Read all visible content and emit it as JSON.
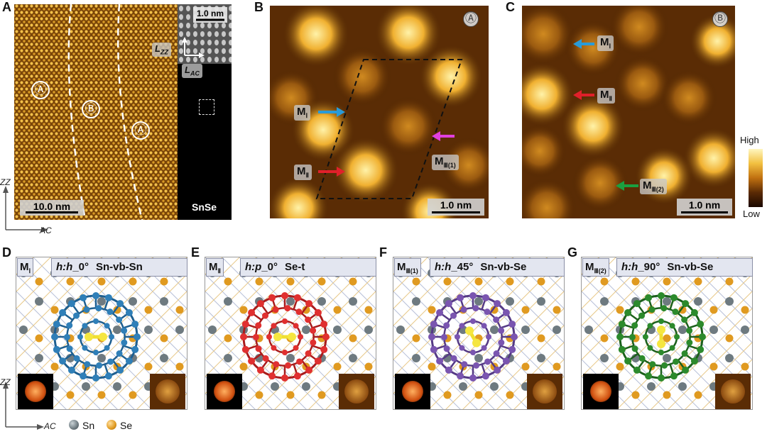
{
  "panel_labels": [
    "A",
    "B",
    "C",
    "D",
    "E",
    "F",
    "G"
  ],
  "panelA": {
    "scale_bar": "10.0 nm",
    "inset_scale_bar": "1.0 nm",
    "material": "SnSe",
    "lzz": "L",
    "lzz_sub": "ZZ",
    "lac": "L",
    "lac_sub": "AC",
    "domains": [
      "Ⓐ",
      "Ⓑ",
      "Ⓐ"
    ],
    "axis_zz": "ZZ",
    "axis_ac": "AC"
  },
  "panelB": {
    "badge": "Ⓐ",
    "scale_bar": "1.0 nm",
    "tags": [
      {
        "main": "M",
        "sub": "Ⅰ"
      },
      {
        "main": "M",
        "sub": "Ⅱ"
      },
      {
        "main": "M",
        "sub": "Ⅲ(1)"
      }
    ],
    "arrow_colors": [
      "#2a9bd8",
      "#e0202a",
      "#e040e0"
    ]
  },
  "panelC": {
    "badge": "Ⓑ",
    "scale_bar": "1.0 nm",
    "tags": [
      {
        "main": "M",
        "sub": "Ⅰ"
      },
      {
        "main": "M",
        "sub": "Ⅱ"
      },
      {
        "main": "M",
        "sub": "Ⅲ(2)"
      }
    ],
    "arrow_colors": [
      "#2a9bd8",
      "#e0202a",
      "#1aa040"
    ],
    "colorbar_high": "High",
    "colorbar_low": "Low"
  },
  "models": [
    {
      "letter": "D",
      "m_main": "M",
      "m_sub": "Ⅰ",
      "orient": "h:h",
      "angle": "_0°",
      "site": "Sn-vb-Sn",
      "color": "#2f7fb8",
      "dark": "#1e5f90"
    },
    {
      "letter": "E",
      "m_main": "M",
      "m_sub": "Ⅱ",
      "orient": "h:p",
      "angle": "_0°",
      "site": "Se-t",
      "color": "#e03030",
      "dark": "#a81c1c"
    },
    {
      "letter": "F",
      "m_main": "M",
      "m_sub": "Ⅲ(1)",
      "orient": "h:h",
      "angle": "_45°",
      "site": "Sn-vb-Se",
      "color": "#7a55b0",
      "dark": "#553a85"
    },
    {
      "letter": "G",
      "m_main": "M",
      "m_sub": "Ⅲ(2)",
      "orient": "h:h",
      "angle": "_90°",
      "site": "Sn-vb-Se",
      "color": "#2c8a2c",
      "dark": "#1c601c"
    }
  ],
  "legend": {
    "zz": "ZZ",
    "ac": "AC",
    "sn": "Sn",
    "se": "Se",
    "sn_color": "#6e7a80",
    "se_color": "#e09a20"
  }
}
